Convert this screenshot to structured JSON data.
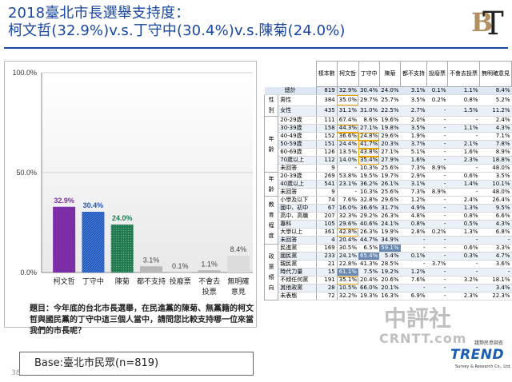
{
  "title": {
    "line1": "2018臺北市長選舉支持度：",
    "line2": "柯文哲(32.9%)v.s.丁守中(30.4%)v.s.陳菊(24.0%)"
  },
  "logo": {
    "text": "TBT"
  },
  "question": "題目：今年底的台北市長選舉，在民進黨的陳菊、無黨籍的柯文哲與國民黨的丁守中這三個人當中，請問您比較支持哪一位來當我們的市長呢？",
  "base": "Base:臺北市民眾(n=819)",
  "page_number": "38",
  "watermark": {
    "cn": "中評社",
    "en": "CRNTT.com"
  },
  "trend": {
    "small": "趨勢民意調查",
    "name": "TREND",
    "sub": "Survey & Research Co., Ltd."
  },
  "colors": {
    "purple": "#7c2ea6",
    "blue": "#1f58c0",
    "green": "#1f7a50",
    "gray": "#b8b8b8",
    "lightgray": "#dcdcdc"
  },
  "chart_data": {
    "type": "bar",
    "categories": [
      "柯文哲",
      "丁守中",
      "陳菊",
      "都不支持",
      "投廢票",
      "不會去投票",
      "無明確意見"
    ],
    "values": [
      32.9,
      30.4,
      24.0,
      3.1,
      0.1,
      1.1,
      8.4
    ],
    "value_labels": [
      "32.9%",
      "30.4%",
      "24.0%",
      "3.1%",
      "0.1%",
      "1.1%",
      "8.4%"
    ],
    "yticks": [
      "100.0%",
      "50.0%",
      "0.0%"
    ],
    "ylim": [
      0,
      100
    ]
  },
  "table": {
    "headers": [
      "樣本數",
      "柯文哲",
      "丁守中",
      "陳菊",
      "都不支持",
      "投廢票",
      "不會去投票",
      "無明確意見"
    ],
    "total": {
      "label": "總計",
      "values": [
        "819",
        "32.9%",
        "30.4%",
        "24.0%",
        "3.1%",
        "0.1%",
        "1.1%",
        "8.4%"
      ]
    },
    "groups": [
      {
        "name": "性別",
        "rows": [
          {
            "label": "男性",
            "values": [
              "384",
              "35.0%",
              "29.7%",
              "25.7%",
              "3.5%",
              "0.2%",
              "0.8%",
              "5.2%"
            ]
          },
          {
            "label": "女性",
            "values": [
              "435",
              "31.1%",
              "31.0%",
              "22.5%",
              "2.7%",
              "-",
              "1.5%",
              "11.2%"
            ]
          }
        ]
      },
      {
        "name": "年齡",
        "rows": [
          {
            "label": "20-29歲",
            "values": [
              "111",
              "67.4%",
              "8.6%",
              "19.6%",
              "2.0%",
              "-",
              "-",
              "2.4%"
            ]
          },
          {
            "label": "30-39歲",
            "values": [
              "158",
              "44.3%",
              "27.1%",
              "19.8%",
              "3.5%",
              "-",
              "1.1%",
              "4.3%"
            ]
          },
          {
            "label": "40-49歲",
            "values": [
              "152",
              "36.6%",
              "24.8%",
              "29.6%",
              "1.9%",
              "-",
              "-",
              "7.1%"
            ]
          },
          {
            "label": "50-59歲",
            "values": [
              "151",
              "24.4%",
              "41.7%",
              "20.3%",
              "3.7%",
              "-",
              "2.1%",
              "7.8%"
            ]
          },
          {
            "label": "60-69歲",
            "values": [
              "126",
              "13.5%",
              "43.8%",
              "27.1%",
              "5.1%",
              "-",
              "1.6%",
              "8.9%"
            ]
          },
          {
            "label": "70歲以上",
            "values": [
              "112",
              "14.0%",
              "35.4%",
              "27.9%",
              "1.6%",
              "-",
              "2.3%",
              "18.8%"
            ]
          },
          {
            "label": "未回答",
            "values": [
              "9",
              "-",
              "10.3%",
              "25.6%",
              "7.3%",
              "8.9%",
              "-",
              "48.0%"
            ]
          }
        ]
      },
      {
        "name": "年齡",
        "rows": [
          {
            "label": "20-39歲",
            "values": [
              "269",
              "53.8%",
              "19.5%",
              "19.7%",
              "2.9%",
              "-",
              "0.6%",
              "3.5%"
            ]
          },
          {
            "label": "40歲以上",
            "values": [
              "541",
              "23.1%",
              "36.2%",
              "26.1%",
              "3.1%",
              "-",
              "1.4%",
              "10.1%"
            ]
          },
          {
            "label": "未回答",
            "values": [
              "9",
              "-",
              "10.3%",
              "25.6%",
              "7.3%",
              "8.9%",
              "-",
              "48.0%"
            ]
          }
        ]
      },
      {
        "name": "教育程度",
        "rows": [
          {
            "label": "小學及以下",
            "values": [
              "74",
              "7.6%",
              "32.8%",
              "29.6%",
              "1.2%",
              "-",
              "2.4%",
              "26.4%"
            ]
          },
          {
            "label": "國中、初中",
            "values": [
              "67",
              "16.0%",
              "36.6%",
              "31.7%",
              "4.9%",
              "-",
              "1.3%",
              "9.5%"
            ]
          },
          {
            "label": "高中、高職",
            "values": [
              "207",
              "32.3%",
              "29.2%",
              "26.3%",
              "4.8%",
              "-",
              "0.8%",
              "6.6%"
            ]
          },
          {
            "label": "專科",
            "values": [
              "105",
              "29.6%",
              "40.6%",
              "24.1%",
              "0.8%",
              "-",
              "0.5%",
              "4.3%"
            ]
          },
          {
            "label": "大學以上",
            "values": [
              "361",
              "42.8%",
              "26.3%",
              "19.9%",
              "2.8%",
              "0.2%",
              "1.3%",
              "6.8%"
            ]
          },
          {
            "label": "未回答",
            "values": [
              "4",
              "20.4%",
              "44.7%",
              "34.9%",
              "-",
              "-",
              "-",
              "-"
            ]
          }
        ]
      },
      {
        "name": "政黨傾向",
        "rows": [
          {
            "label": "民進黨",
            "values": [
              "169",
              "30.5%",
              "6.5%",
              "59.1%",
              "-",
              "-",
              "0.6%",
              "3.3%"
            ]
          },
          {
            "label": "國民黨",
            "values": [
              "233",
              "24.1%",
              "65.4%",
              "5.4%",
              "0.1%",
              "-",
              "0.3%",
              "4.7%"
            ]
          },
          {
            "label": "親民黨",
            "values": [
              "21",
              "22.8%",
              "41.3%",
              "28.5%",
              "-",
              "3.7%",
              "-",
              "3.6%"
            ]
          },
          {
            "label": "時代力量",
            "values": [
              "15",
              "61.1%",
              "7.5%",
              "19.2%",
              "1.2%",
              "-",
              "-",
              "-"
            ]
          },
          {
            "label": "不傾任何黨",
            "values": [
              "191",
              "35.1%",
              "20.4%",
              "20.6%",
              "7.6%",
              "-",
              "3.2%",
              "18.1%"
            ]
          },
          {
            "label": "其他政黨",
            "values": [
              "28",
              "10.5%",
              "66.0%",
              "20.1%",
              "-",
              "-",
              "-",
              "3.4%"
            ]
          },
          {
            "label": "未表態",
            "values": [
              "72",
              "32.2%",
              "19.3%",
              "16.3%",
              "6.9%",
              "-",
              "2.3%",
              "22.3%"
            ]
          }
        ]
      }
    ]
  }
}
